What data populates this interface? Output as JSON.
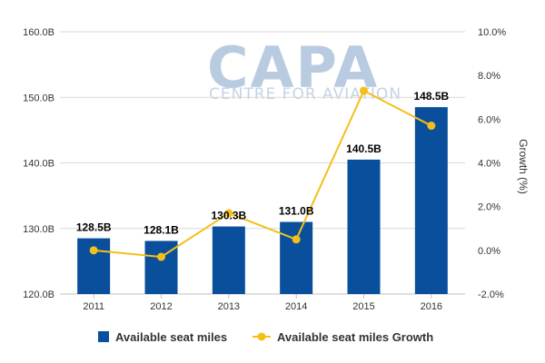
{
  "watermark": {
    "brand": "CAPA",
    "tagline": "CENTRE FOR AVIATION"
  },
  "chart_data": {
    "type": "bar",
    "categories": [
      "2011",
      "2012",
      "2013",
      "2014",
      "2015",
      "2016"
    ],
    "series": [
      {
        "name": "Available seat miles",
        "type": "bar",
        "axis": "left",
        "values": [
          128.5,
          128.1,
          130.3,
          131.0,
          140.5,
          148.5
        ],
        "labels": [
          "128.5B",
          "128.1B",
          "130.3B",
          "131.0B",
          "140.5B",
          "148.5B"
        ],
        "color": "#0a4f9c"
      },
      {
        "name": "Available seat miles Growth",
        "type": "line",
        "axis": "right",
        "values": [
          0.0,
          -0.3,
          1.7,
          0.5,
          7.3,
          5.7
        ],
        "color": "#f5bf1b"
      }
    ],
    "y_left": {
      "range": [
        120,
        160
      ],
      "ticks": [
        120,
        130,
        140,
        150,
        160
      ],
      "tick_labels": [
        "120.0B",
        "130.0B",
        "140.0B",
        "150.0B",
        "160.0B"
      ]
    },
    "y_right": {
      "label": "Growth (%)",
      "range": [
        -2,
        10
      ],
      "ticks": [
        -2,
        0,
        2,
        4,
        6,
        8,
        10
      ],
      "tick_labels": [
        "-2.0%",
        "0.0%",
        "2.0%",
        "4.0%",
        "6.0%",
        "8.0%",
        "10.0%"
      ]
    },
    "grid": true,
    "legend": "bottom"
  }
}
